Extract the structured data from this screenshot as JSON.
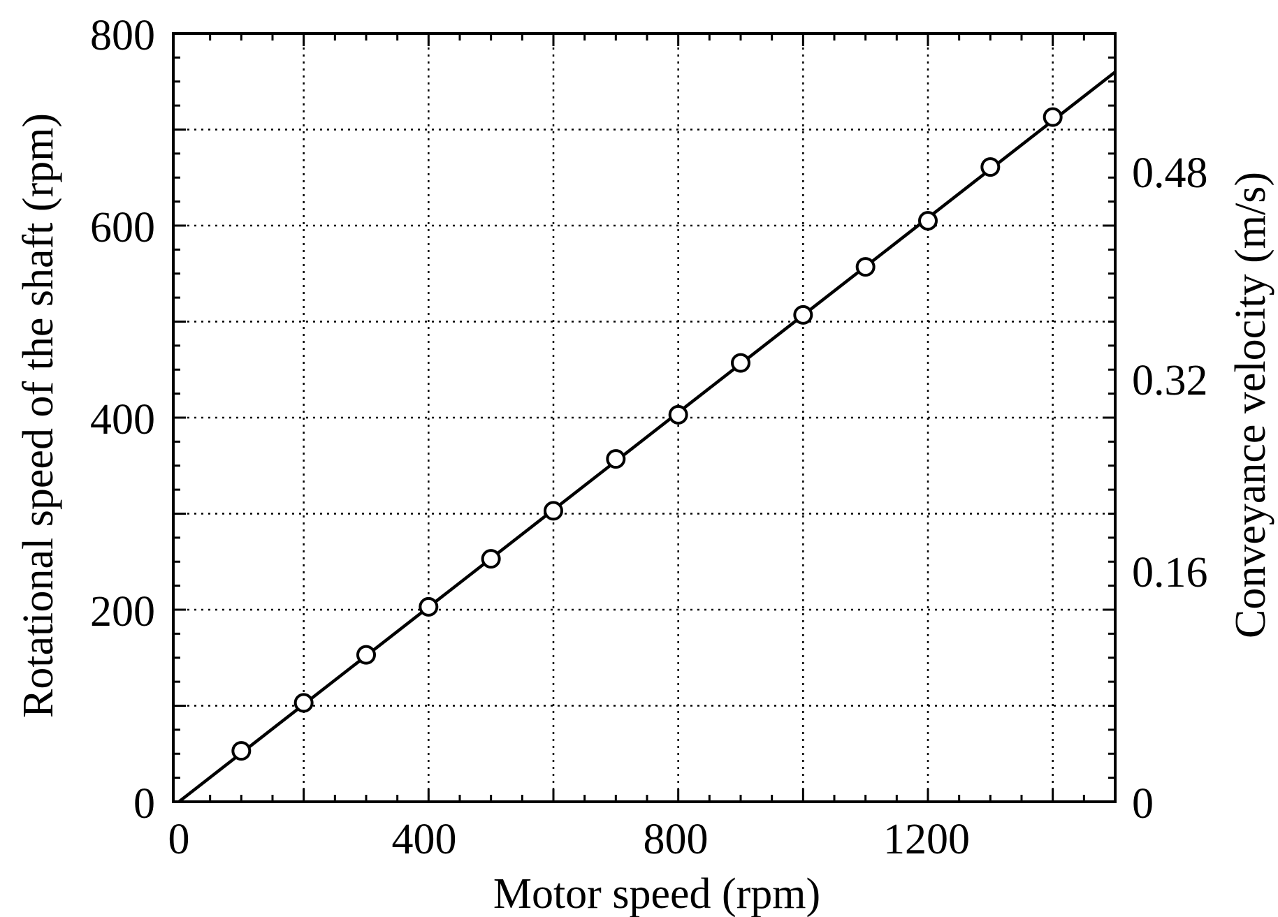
{
  "chart_data": {
    "type": "scatter",
    "xlabel": "Motor speed (rpm)",
    "ylabel": "Rotational speed of the shaft (rpm)",
    "y2label": "Conveyance velocity  (m/s)",
    "xlim": [
      0,
      1500
    ],
    "ylim": [
      0,
      800
    ],
    "y2lim": [
      0,
      0.64
    ],
    "x_ticks": [
      "0",
      "400",
      "800",
      "1200"
    ],
    "y_ticks": [
      "0",
      "200",
      "400",
      "600",
      "800"
    ],
    "y2_ticks": [
      "0",
      "0.16",
      "0.32",
      "0.48"
    ],
    "grid": true,
    "series": [
      {
        "marker": "open-circle",
        "x": [
          100,
          200,
          300,
          400,
          500,
          600,
          700,
          800,
          900,
          1000,
          1100,
          1200,
          1300,
          1400
        ],
        "y": [
          53,
          103,
          153,
          203,
          253,
          303,
          357,
          403,
          457,
          507,
          557,
          605,
          661,
          713
        ]
      }
    ],
    "fit_line": {
      "x": [
        0,
        1500
      ],
      "y": [
        0,
        760
      ]
    }
  }
}
